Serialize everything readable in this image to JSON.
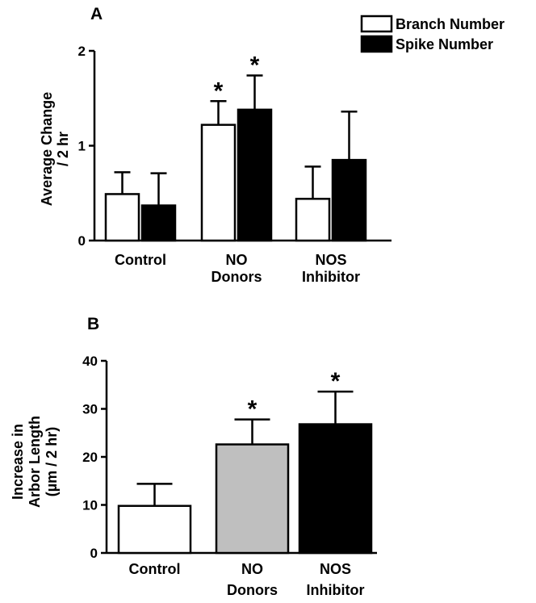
{
  "chart_data": [
    {
      "type": "bar",
      "panel_label": "A",
      "categories": [
        [
          "Control"
        ],
        [
          "NO",
          "Donors"
        ],
        [
          "NOS",
          "Inhibitor"
        ]
      ],
      "ylabel": [
        "Average Change",
        "/ 2 hr"
      ],
      "ylim": [
        0,
        2
      ],
      "yticks": [
        0,
        1,
        2
      ],
      "legend_position": "top-right",
      "series": [
        {
          "name": "Branch Number",
          "color": "#ffffff",
          "values": [
            0.49,
            1.22,
            0.44
          ],
          "errors": [
            0.23,
            0.25,
            0.34
          ],
          "significant": [
            "",
            "*",
            ""
          ]
        },
        {
          "name": "Spike Number",
          "color": "#000000",
          "values": [
            0.37,
            1.38,
            0.85
          ],
          "errors": [
            0.34,
            0.36,
            0.51
          ],
          "significant": [
            "",
            "*",
            ""
          ]
        }
      ]
    },
    {
      "type": "bar",
      "panel_label": "B",
      "categories": [
        [
          "Control"
        ],
        [
          "NO",
          "Donors"
        ],
        [
          "NOS",
          "Inhibitor"
        ]
      ],
      "ylabel": [
        "Increase in",
        "Arbor Length",
        "(µm / 2 hr)"
      ],
      "ylim": [
        0,
        40
      ],
      "yticks": [
        0,
        10,
        20,
        30,
        40
      ],
      "series": [
        {
          "colors": [
            "#ffffff",
            "#bfbfbf",
            "#000000"
          ],
          "values": [
            9.8,
            22.6,
            26.8
          ],
          "errors": [
            4.6,
            5.2,
            6.8
          ],
          "significant": [
            "",
            "*",
            "*"
          ]
        }
      ]
    }
  ]
}
